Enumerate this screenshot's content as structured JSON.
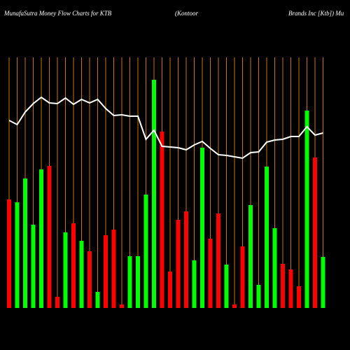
{
  "chart_data": {
    "type": "bar",
    "title": "MunafaSutra  Money  Flow  Charts for KTB",
    "title_company": "(Kontoor",
    "title_name": "Brands Inc [Ktb]) Mu",
    "ylim": [
      0,
      358
    ],
    "grid": true,
    "grid_color": "#c87800",
    "line_color": "#ffffff",
    "values": [
      155,
      151,
      185,
      119,
      198,
      203,
      16,
      108,
      121,
      96,
      81,
      23,
      104,
      112,
      5,
      74,
      74,
      162,
      326,
      252,
      52,
      126,
      138,
      68,
      229,
      99,
      135,
      62,
      5,
      88,
      147,
      33,
      202,
      114,
      63,
      55,
      31,
      282,
      215,
      73
    ],
    "colors": [
      "#ff0000",
      "#00ff00",
      "#00ff00",
      "#00ff00",
      "#00ff00",
      "#ff0000",
      "#ff0000",
      "#00ff00",
      "#ff0000",
      "#00ff00",
      "#ff0000",
      "#00ff00",
      "#ff0000",
      "#ff0000",
      "#ff0000",
      "#00ff00",
      "#00ff00",
      "#00ff00",
      "#00ff00",
      "#ff0000",
      "#ff0000",
      "#ff0000",
      "#ff0000",
      "#00ff00",
      "#00ff00",
      "#ff0000",
      "#ff0000",
      "#00ff00",
      "#ff0000",
      "#ff0000",
      "#00ff00",
      "#00ff00",
      "#00ff00",
      "#00ff00",
      "#ff0000",
      "#ff0000",
      "#ff0000",
      "#00ff00",
      "#ff0000",
      "#00ff00"
    ],
    "line_values": [
      268,
      262,
      280,
      292,
      301,
      293,
      292,
      300,
      291,
      298,
      293,
      298,
      285,
      275,
      276,
      274,
      274,
      241,
      254,
      231,
      230,
      229,
      226,
      233,
      238,
      228,
      219,
      218,
      216,
      214,
      222,
      223,
      237,
      240,
      241,
      245,
      245,
      259,
      247,
      250
    ]
  }
}
